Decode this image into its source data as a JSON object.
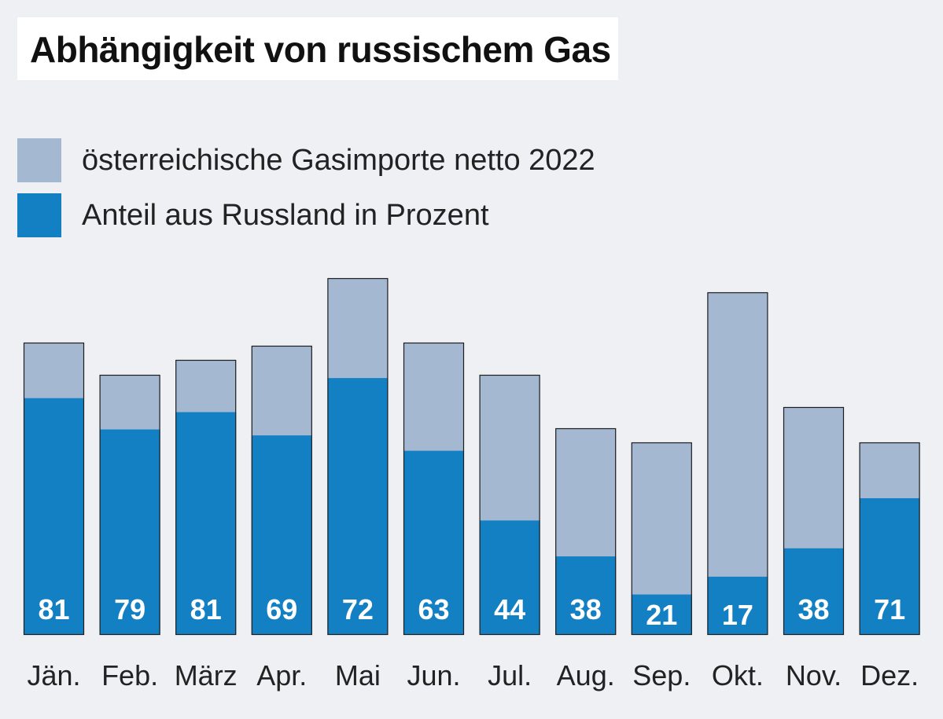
{
  "title": "Abhängigkeit von russischem Gas",
  "legend": [
    {
      "label": "österreichische Gasimporte netto 2022",
      "color": "#a4b8d2"
    },
    {
      "label": "Anteil aus Russland in Prozent",
      "color": "#1380c3"
    }
  ],
  "chart_data": {
    "type": "bar",
    "stacked": "overlay",
    "categories": [
      "Jän.",
      "Feb.",
      "März",
      "Apr.",
      "Mai",
      "Jun.",
      "Jul.",
      "Aug.",
      "Sep.",
      "Okt.",
      "Nov.",
      "Dez."
    ],
    "series": [
      {
        "name": "österreichische Gasimporte netto 2022",
        "color": "#a4b8d2",
        "values": [
          372,
          331,
          350,
          368,
          454,
          372,
          331,
          263,
          245,
          436,
          290,
          245
        ]
      },
      {
        "name": "Anteil aus Russland in Prozent",
        "color": "#1380c3",
        "values": [
          81,
          79,
          81,
          69,
          72,
          63,
          44,
          38,
          21,
          17,
          38,
          71
        ],
        "value_type": "percent of total"
      }
    ],
    "data_labels": [
      "81",
      "79",
      "81",
      "69",
      "72",
      "63",
      "44",
      "38",
      "21",
      "17",
      "38",
      "71"
    ],
    "title": "Abhängigkeit von russischem Gas",
    "xlabel": "",
    "ylabel": "",
    "ylim": [
      0,
      454
    ],
    "grid": false,
    "legend_position": "top-left"
  }
}
